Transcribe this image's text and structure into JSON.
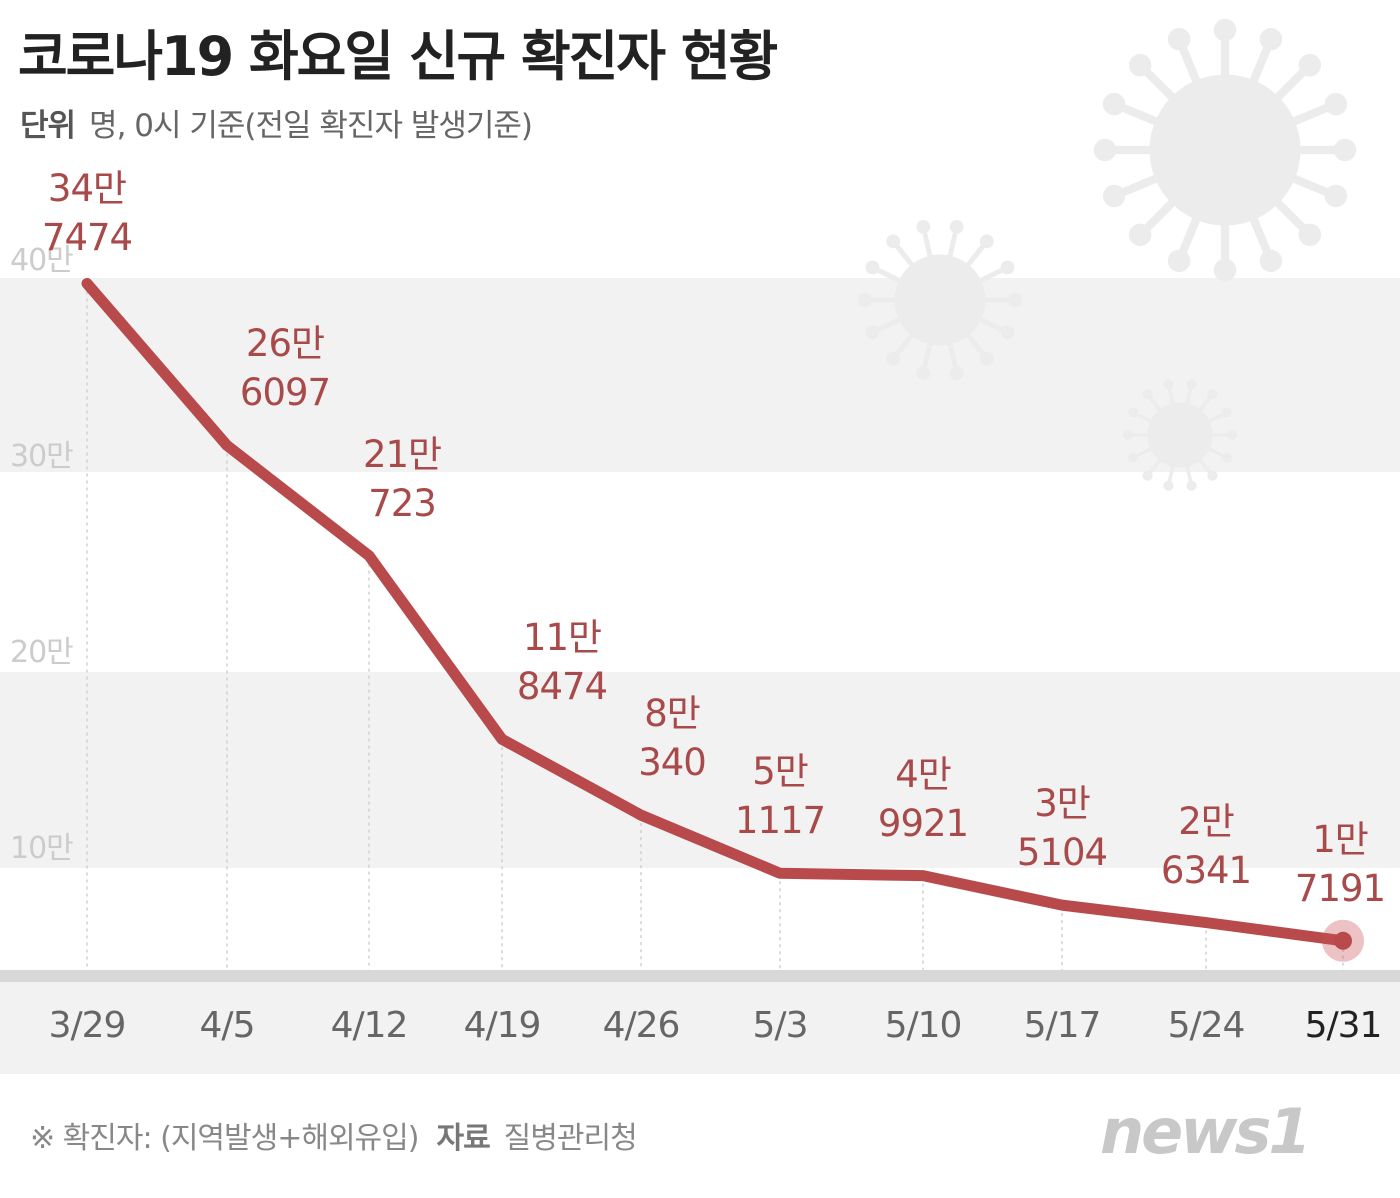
{
  "title": "코로나19 화요일 신규 확진자 현황",
  "subtitle": {
    "label": "단위",
    "text": "명, 0시 기준(전일 확진자 발생기준)"
  },
  "footer": {
    "note": "※ 확진자: (지역발생+해외유입)",
    "source_label": "자료",
    "source": "질병관리청"
  },
  "logo": "news1",
  "colors": {
    "line": "#b84a4c",
    "label": "#a84a4a",
    "band": "#f2f2f2"
  },
  "chart_data": {
    "type": "line",
    "title": "코로나19 화요일 신규 확진자 현황",
    "categories": [
      "3/29",
      "4/5",
      "4/12",
      "4/19",
      "4/26",
      "5/3",
      "5/10",
      "5/17",
      "5/24",
      "5/31"
    ],
    "values": [
      347474,
      266097,
      210723,
      118474,
      80340,
      51117,
      49921,
      35104,
      26341,
      17191
    ],
    "data_labels": [
      [
        "34만",
        "7474"
      ],
      [
        "26만",
        "6097"
      ],
      [
        "21만",
        "723"
      ],
      [
        "11만",
        "8474"
      ],
      [
        "8만",
        "340"
      ],
      [
        "5만",
        "1117"
      ],
      [
        "4만",
        "9921"
      ],
      [
        "3만",
        "5104"
      ],
      [
        "2만",
        "6341"
      ],
      [
        "1만",
        "7191"
      ]
    ],
    "y_ticks": [
      {
        "value": 400000,
        "label": "40만"
      },
      {
        "value": 300000,
        "label": "30만"
      },
      {
        "value": 200000,
        "label": "20만"
      },
      {
        "value": 100000,
        "label": "10만"
      }
    ],
    "ylim": [
      0,
      400000
    ],
    "grid": "alternating bands",
    "highlight_last": true
  }
}
